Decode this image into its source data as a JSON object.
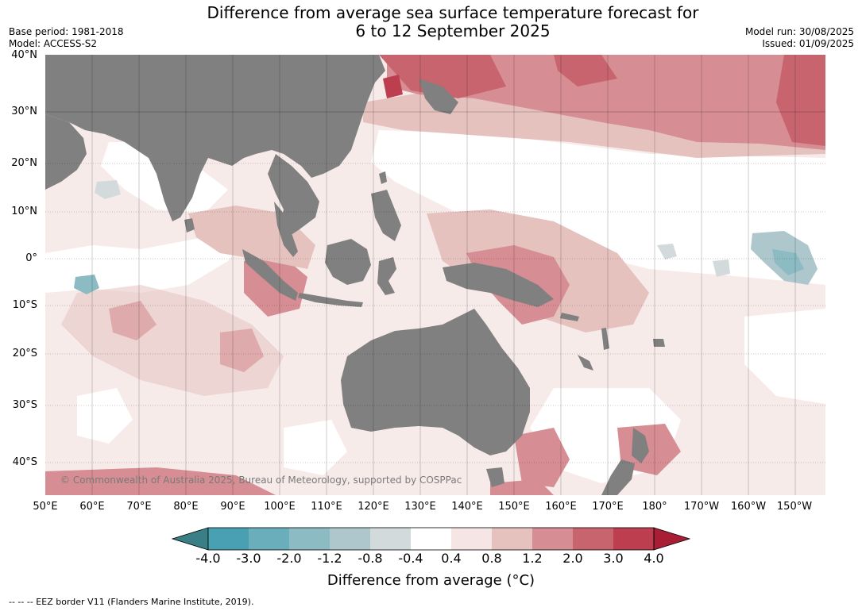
{
  "header": {
    "title_line1": "Difference from average sea surface temperature forecast for",
    "title_line2": "6 to 12 September 2025",
    "base_period": "Base period: 1981-2018",
    "model": "Model: ACCESS-S2",
    "model_run": "Model run: 30/08/2025",
    "issued": "Issued: 01/09/2025"
  },
  "map": {
    "lat_labels": [
      "40°N",
      "30°N",
      "20°N",
      "10°N",
      "0°",
      "10°S",
      "20°S",
      "30°S",
      "40°S"
    ],
    "lon_labels": [
      "50°E",
      "60°E",
      "70°E",
      "80°E",
      "90°E",
      "100°E",
      "110°E",
      "120°E",
      "130°E",
      "140°E",
      "150°E",
      "160°E",
      "170°E",
      "180°",
      "170°W",
      "160°W",
      "150°W"
    ],
    "land_color": "#808080",
    "copyright": "© Commonwealth of Australia 2025, Bureau of Meteorology, supported by COSPPac"
  },
  "colorbar": {
    "title": "Difference from average (°C)",
    "tick_labels": [
      "-4.0",
      "-3.0",
      "-2.0",
      "-1.2",
      "-0.8",
      "-0.4",
      "0.4",
      "0.8",
      "1.2",
      "2.0",
      "3.0",
      "4.0"
    ],
    "colors": [
      "#3a7f86",
      "#49a0b2",
      "#6aaebb",
      "#8cbbc3",
      "#adc7cc",
      "#d3dadb",
      "#ffffff",
      "#f5e6e5",
      "#e6c2bf",
      "#d68d93",
      "#c8646d",
      "#bd3e4f",
      "#a81e34"
    ]
  },
  "footnote": "--  --  -- EEZ border V11 (Flanders Marine Institute, 2019)."
}
